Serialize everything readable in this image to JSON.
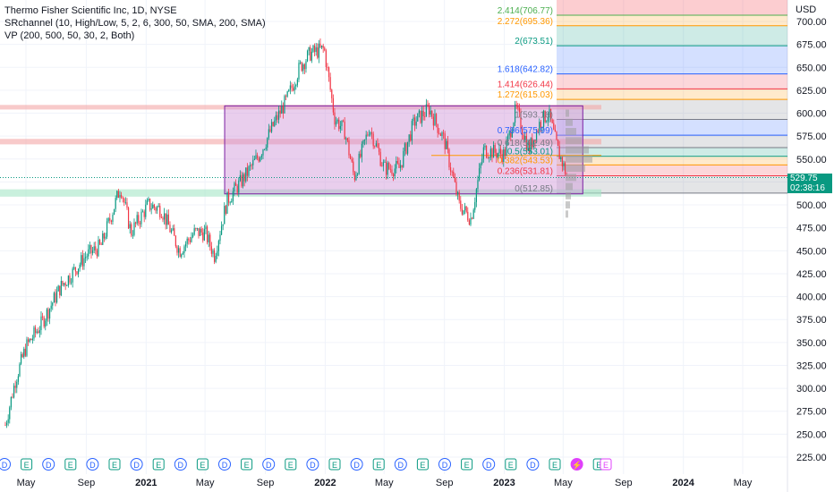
{
  "legend": {
    "title": "Thermo Fisher Scientific Inc, 1D, NYSE",
    "indicator1": "SRchannel (10, High/Low, 5, 2, 6, 300, 50, SMA, 200, SMA)",
    "indicator2": "VP (200, 500, 50, 30, 2, Both)"
  },
  "currency": "USD",
  "last_price": {
    "value": "529.75",
    "countdown": "02:38:16",
    "color": "#089981"
  },
  "chart_data": {
    "type": "candlestick",
    "title": "Thermo Fisher Scientific Inc, 1D, NYSE",
    "ylim": [
      212,
      718
    ],
    "yticks": [
      "700.00",
      "675.00",
      "650.00",
      "625.00",
      "600.00",
      "575.00",
      "550.00",
      "525.00",
      "500.00",
      "475.00",
      "450.00",
      "425.00",
      "400.00",
      "375.00",
      "350.00",
      "325.00",
      "300.00",
      "275.00",
      "250.00",
      "225.00"
    ],
    "xticks": [
      "May",
      "Sep",
      "2021",
      "May",
      "Sep",
      "2022",
      "May",
      "Sep",
      "2023",
      "May",
      "Sep",
      "2024",
      "May"
    ],
    "price_path": [
      [
        "2020-03-20",
        260
      ],
      [
        "2020-04-10",
        310
      ],
      [
        "2020-05-01",
        345
      ],
      [
        "2020-06-01",
        370
      ],
      [
        "2020-07-10",
        410
      ],
      [
        "2020-08-10",
        430
      ],
      [
        "2020-09-01",
        445
      ],
      [
        "2020-10-01",
        455
      ],
      [
        "2020-11-10",
        520
      ],
      [
        "2020-12-01",
        470
      ],
      [
        "2021-01-05",
        500
      ],
      [
        "2021-02-01",
        495
      ],
      [
        "2021-03-10",
        450
      ],
      [
        "2021-04-10",
        470
      ],
      [
        "2021-05-01",
        470
      ],
      [
        "2021-05-20",
        445
      ],
      [
        "2021-06-15",
        505
      ],
      [
        "2021-07-20",
        530
      ],
      [
        "2021-08-20",
        555
      ],
      [
        "2021-09-20",
        590
      ],
      [
        "2021-10-15",
        615
      ],
      [
        "2021-11-10",
        650
      ],
      [
        "2021-12-01",
        665
      ],
      [
        "2021-12-30",
        670
      ],
      [
        "2022-01-20",
        595
      ],
      [
        "2022-02-10",
        580
      ],
      [
        "2022-03-01",
        530
      ],
      [
        "2022-04-01",
        585
      ],
      [
        "2022-05-01",
        540
      ],
      [
        "2022-06-01",
        540
      ],
      [
        "2022-07-01",
        590
      ],
      [
        "2022-08-01",
        605
      ],
      [
        "2022-09-01",
        570
      ],
      [
        "2022-10-01",
        500
      ],
      [
        "2022-10-25",
        485
      ],
      [
        "2022-11-20",
        560
      ],
      [
        "2023-01-01",
        555
      ],
      [
        "2023-01-25",
        605
      ],
      [
        "2023-02-20",
        560
      ],
      [
        "2023-03-15",
        590
      ],
      [
        "2023-04-01",
        600
      ],
      [
        "2023-04-20",
        560
      ],
      [
        "2023-05-10",
        530
      ]
    ],
    "channel_box": {
      "top": 608,
      "bottom": 512,
      "x0": "2021-06-10",
      "x1": "2023-06-10",
      "fill": "#ce93d8"
    },
    "sr_zones": [
      {
        "low": 604,
        "high": 609,
        "color": "#f4a6a6"
      },
      {
        "low": 566,
        "high": 572,
        "color": "#f4a6a6"
      },
      {
        "low": 509,
        "high": 517,
        "color": "#a5e6c6"
      }
    ],
    "fib_levels": [
      {
        "ratio": "2.414",
        "price": "706.77",
        "label": "2.414(706.77)",
        "value": 706.77,
        "color": "#4caf50"
      },
      {
        "ratio": "2.272",
        "price": "695.36",
        "label": "2.272(695.36)",
        "value": 695.36,
        "color": "#ff9800"
      },
      {
        "ratio": "2",
        "price": "673.51",
        "label": "2(673.51)",
        "value": 673.51,
        "color": "#089981"
      },
      {
        "ratio": "1.618",
        "price": "642.82",
        "label": "1.618(642.82)",
        "value": 642.82,
        "color": "#2962ff"
      },
      {
        "ratio": "1.414",
        "price": "626.44",
        "label": "1.414(626.44)",
        "value": 626.44,
        "color": "#f23645"
      },
      {
        "ratio": "1.272",
        "price": "615.03",
        "label": "1.272(615.03)",
        "value": 615.03,
        "color": "#ff9800"
      },
      {
        "ratio": "1",
        "price": "593.18",
        "label": "1(593.18)",
        "value": 593.18,
        "color": "#787b86"
      },
      {
        "ratio": "0.786",
        "price": "575.99",
        "label": "0.786(575.99)",
        "value": 575.99,
        "color": "#2962ff"
      },
      {
        "ratio": "0.618",
        "price": "562.49",
        "label": "0.618(562.49)",
        "value": 562.49,
        "color": "#787b86"
      },
      {
        "ratio": "0.5",
        "price": "553.01",
        "label": "0.5(553.01)",
        "value": 553.01,
        "color": "#089981"
      },
      {
        "ratio": "0.382",
        "price": "543.53",
        "label": "0.382(543.53)",
        "value": 543.53,
        "color": "#ff9800"
      },
      {
        "ratio": "0.236",
        "price": "531.81",
        "label": "0.236(531.81)",
        "value": 531.81,
        "color": "#f23645"
      },
      {
        "ratio": "0",
        "price": "512.85",
        "label": "0(512.85)",
        "value": 512.85,
        "color": "#787b86"
      }
    ],
    "poc_line": {
      "price": 554,
      "color": "#ff9800"
    },
    "last_price_line": 529.75,
    "grid": true,
    "event_markers": [
      "D",
      "E",
      "D",
      "E",
      "D",
      "E",
      "D",
      "E",
      "D",
      "E",
      "D",
      "E",
      "D",
      "E",
      "D",
      "E",
      "D",
      "E",
      "D",
      "E",
      "D",
      "E",
      "D",
      "E",
      "D",
      "E",
      "⚡",
      "E"
    ]
  }
}
